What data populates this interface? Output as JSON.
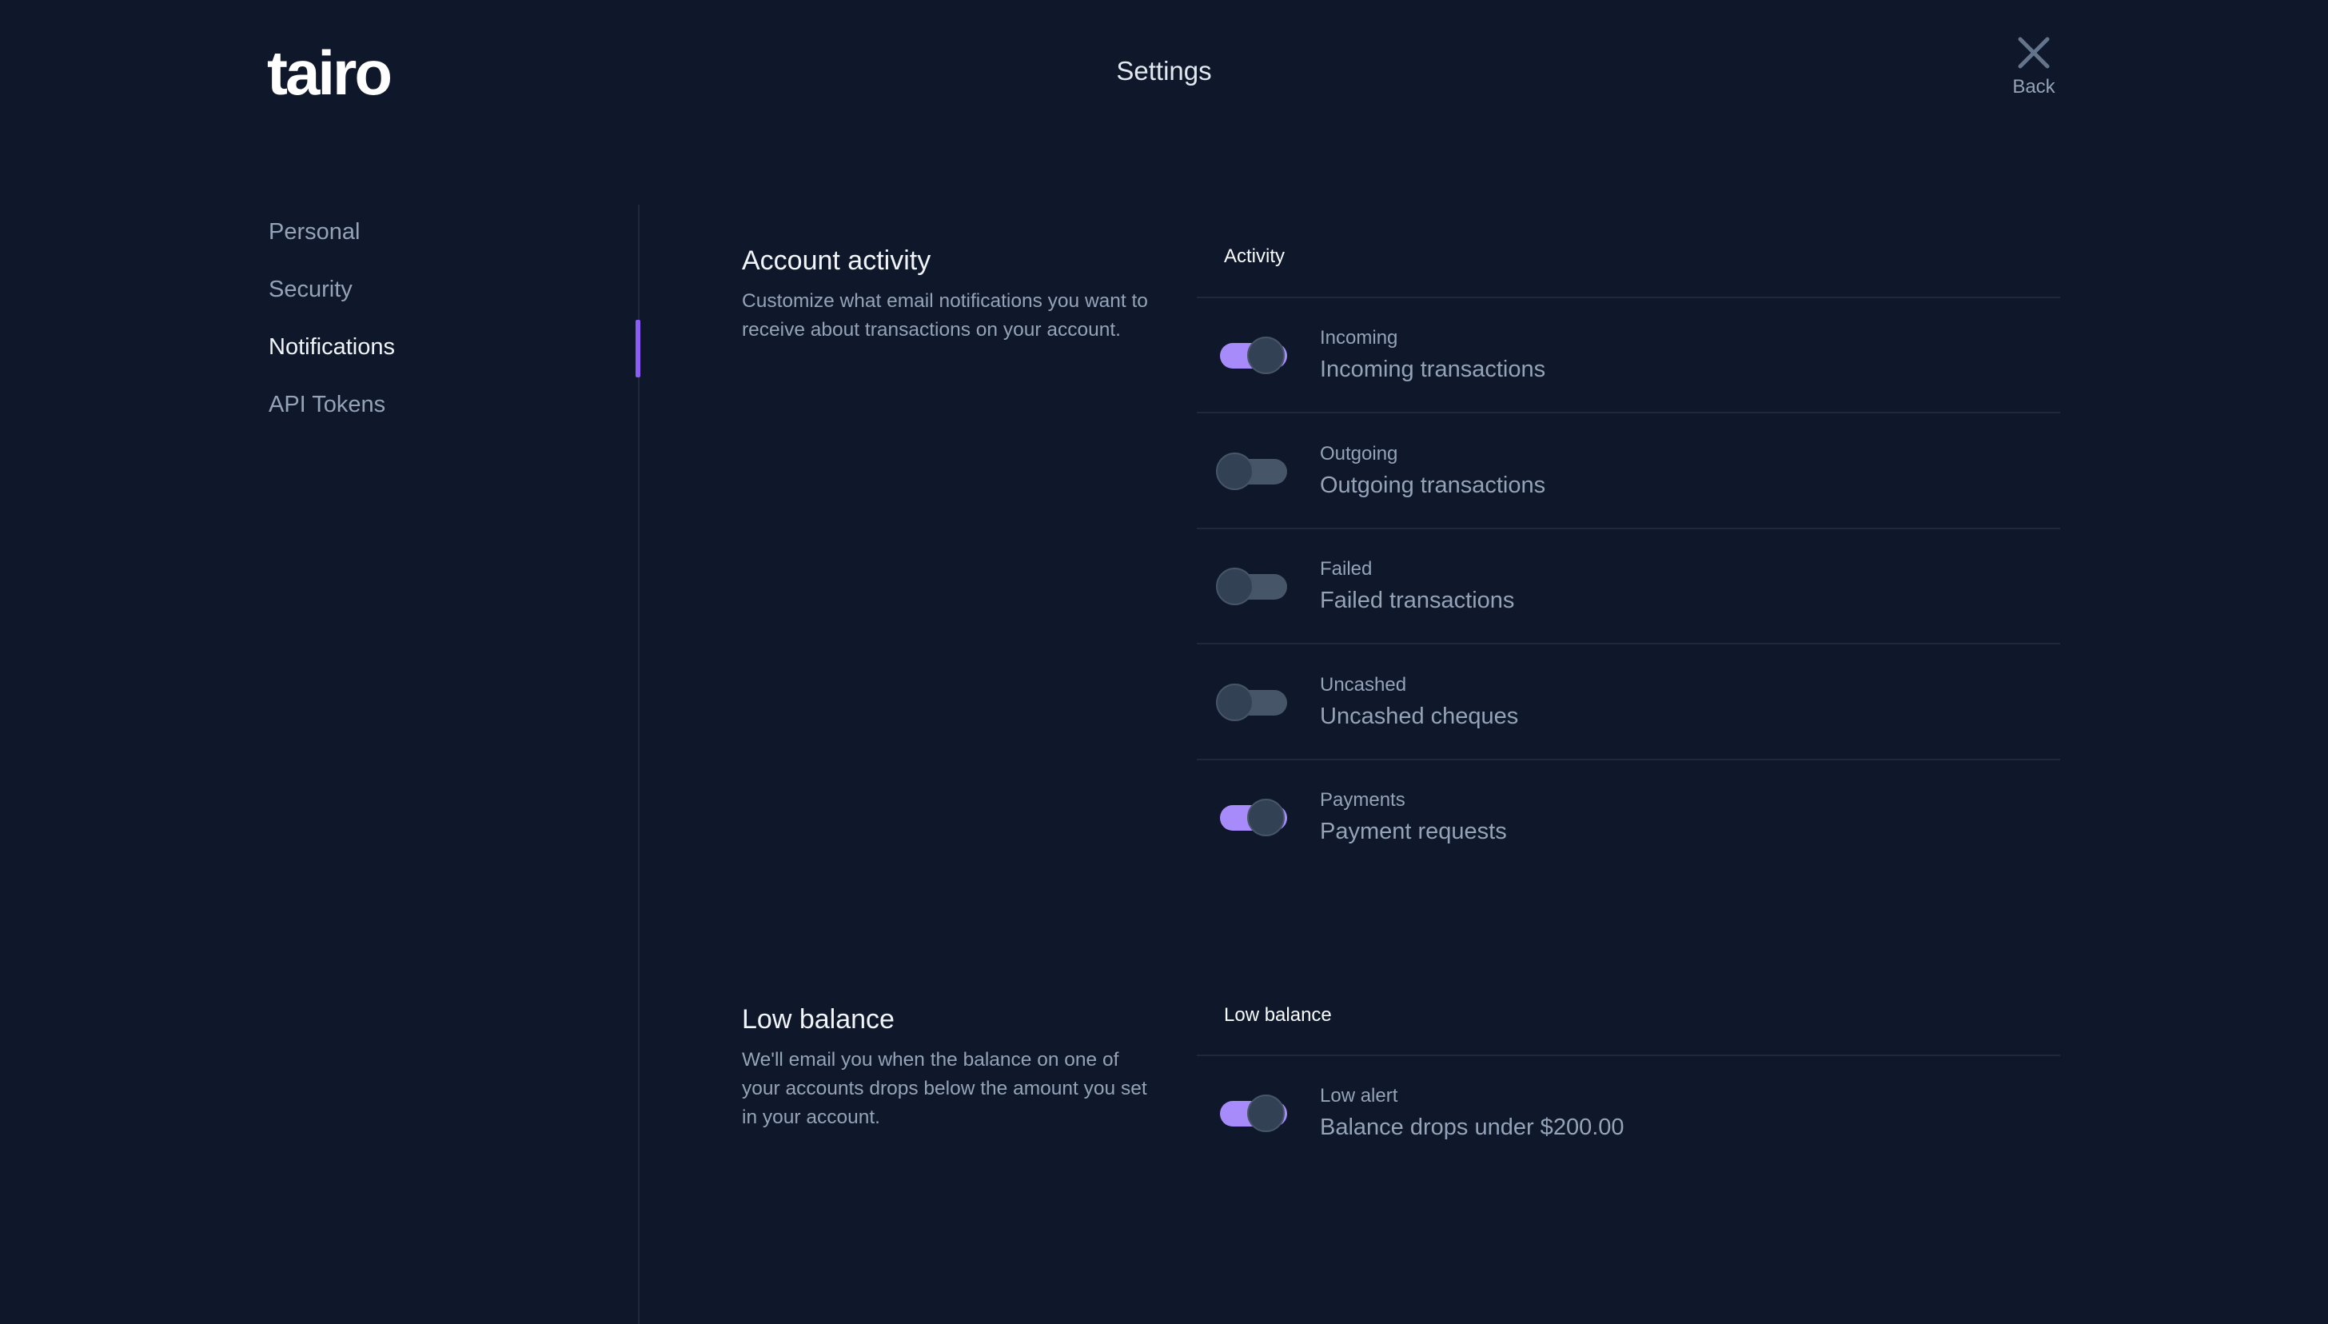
{
  "header": {
    "logo": "tairo",
    "title": "Settings",
    "back_label": "Back"
  },
  "sidebar": {
    "items": [
      {
        "label": "Personal"
      },
      {
        "label": "Security"
      },
      {
        "label": "Notifications",
        "active": true
      },
      {
        "label": "API Tokens"
      }
    ]
  },
  "colors": {
    "background": "#0f172a",
    "accent": "#8b5cf6",
    "toggle_on": "#a78bfa",
    "toggle_off": "#475569"
  },
  "sections": [
    {
      "title": "Account activity",
      "description": "Customize what email notifications you want to receive about transactions on your account.",
      "group": "Activity",
      "rows": [
        {
          "label": "Incoming",
          "text": "Incoming transactions",
          "on": true
        },
        {
          "label": "Outgoing",
          "text": "Outgoing transactions",
          "on": false
        },
        {
          "label": "Failed",
          "text": "Failed transactions",
          "on": false
        },
        {
          "label": "Uncashed",
          "text": "Uncashed cheques",
          "on": false
        },
        {
          "label": "Payments",
          "text": "Payment requests",
          "on": true
        }
      ]
    },
    {
      "title": "Low balance",
      "description": "We'll email you when the balance on one of your accounts drops below the amount you set in your account.",
      "group": "Low balance",
      "rows": [
        {
          "label": "Low alert",
          "text": "Balance drops under $200.00",
          "on": true
        }
      ]
    }
  ]
}
